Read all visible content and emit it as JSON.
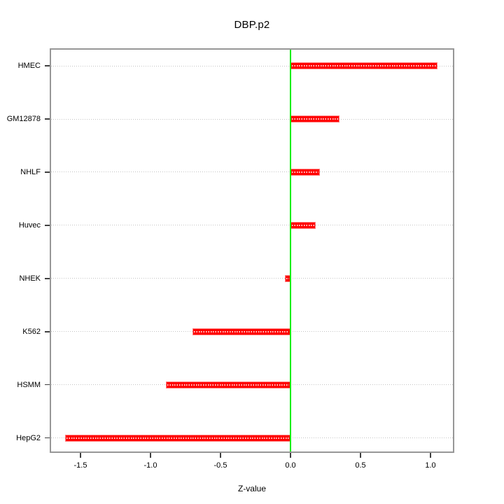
{
  "chart_data": {
    "type": "bar",
    "orientation": "horizontal",
    "title": "DBP.p2",
    "xlabel": "Z-value",
    "ylabel": "",
    "categories": [
      "HMEC",
      "GM12878",
      "NHLF",
      "Huvec",
      "NHEK",
      "K562",
      "HSMM",
      "HepG2"
    ],
    "values": [
      1.05,
      0.35,
      0.21,
      0.18,
      -0.04,
      -0.7,
      -0.89,
      -1.61
    ],
    "x_ticks": [
      -1.5,
      -1.0,
      -0.5,
      0.0,
      0.5,
      1.0
    ],
    "x_tick_labels": [
      "-1.5",
      "-1.0",
      "-0.5",
      "0.0",
      "0.5",
      "1.0"
    ],
    "xlim": [
      -1.715,
      1.165
    ],
    "zero_line_x": 0.0,
    "grid": "horizontal dotted line at each category",
    "legend": "none",
    "colors": {
      "bar_fill": "#ff0000",
      "bar_edge": "#ff8080",
      "zero_line": "#00ee00",
      "grid_line": "#c4c4c4",
      "box_border": "#979797",
      "tick_mark": "#404040",
      "text": "#000000",
      "background": "#ffffff"
    }
  }
}
